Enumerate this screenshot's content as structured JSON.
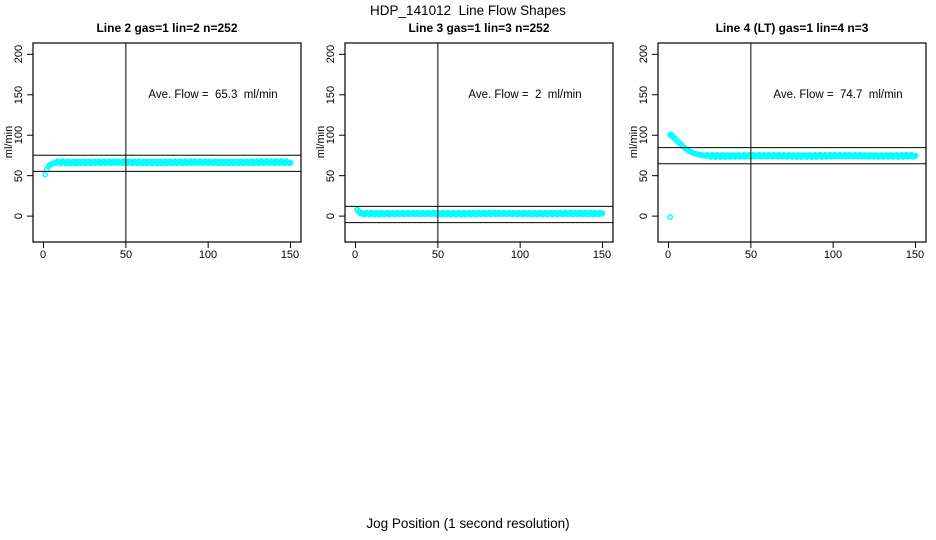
{
  "figure": {
    "title": "HDP_141012  Line Flow Shapes",
    "bottom_axis_label": "Jog Position (1 second resolution)"
  },
  "axes": {
    "y_label": "ml/min",
    "y_ticks": [
      "0",
      "50",
      "100",
      "150",
      "200"
    ],
    "x_ticks": [
      "0",
      "50",
      "100",
      "150"
    ]
  },
  "colors": {
    "points": "#00FFFF",
    "axis": "#000000",
    "background": "#FFFFFF"
  },
  "chart_data": {
    "type": "scatter",
    "xlabel": "Jog Position (1 second resolution)",
    "ylabel": "ml/min",
    "x_domain": [
      -6.4,
      156.4
    ],
    "y_domain": [
      -32,
      214
    ],
    "x_tick_values": [
      0,
      50,
      100,
      150
    ],
    "y_tick_values": [
      0,
      50,
      100,
      150,
      200
    ],
    "marker": "open-circle",
    "grid": false,
    "panels": [
      {
        "title": "Line 2 gas=1 lin=2 n=252",
        "annotation": "Ave. Flow =  65.3  ml/min",
        "ave_flow_ml_min": 65.3,
        "n": 252,
        "vline_x": 50,
        "ref_lines": [
          75.3,
          55.3
        ],
        "series": {
          "transient": [
            [
              1,
              51.5
            ],
            [
              2,
              58
            ],
            [
              3,
              61.5
            ],
            [
              4,
              63.5
            ],
            [
              5,
              64.5
            ],
            [
              6,
              65.2
            ],
            [
              7,
              65.8
            ],
            [
              8,
              66.2
            ]
          ],
          "steady": {
            "from": 8,
            "to": 150,
            "y": 66.5,
            "jitter": 1.6
          }
        },
        "outliers": []
      },
      {
        "title": "Line 3 gas=1 lin=3 n=252",
        "annotation": "Ave. Flow =  2  ml/min",
        "ave_flow_ml_min": 2,
        "n": 252,
        "vline_x": 50,
        "ref_lines": [
          12,
          -8
        ],
        "series": {
          "transient": [
            [
              1,
              8
            ],
            [
              2,
              5.5
            ],
            [
              3,
              4.2
            ]
          ],
          "steady": {
            "from": 3,
            "to": 150,
            "y": 3.2,
            "jitter": 1.4
          }
        },
        "outliers": []
      },
      {
        "title": "Line 4 (LT) gas=1 lin=4 n=3",
        "annotation": "Ave. Flow =  74.7  ml/min",
        "ave_flow_ml_min": 74.7,
        "n": 3,
        "vline_x": 50,
        "ref_lines": [
          84.7,
          64.7
        ],
        "series": {
          "transient": [
            [
              1,
              100.5
            ],
            [
              1.5,
              101
            ],
            [
              2,
              99.5
            ],
            [
              2.5,
              98.5
            ],
            [
              3,
              97.5
            ],
            [
              4,
              95.5
            ],
            [
              5,
              93.5
            ],
            [
              6,
              91.5
            ],
            [
              7,
              89.5
            ],
            [
              8,
              87.5
            ],
            [
              9,
              85.5
            ],
            [
              10,
              84
            ],
            [
              11,
              82.5
            ],
            [
              12,
              81
            ],
            [
              13,
              80
            ],
            [
              14,
              79
            ],
            [
              15,
              78
            ],
            [
              16,
              77.3
            ],
            [
              17,
              76.7
            ],
            [
              18,
              76.2
            ],
            [
              19,
              75.8
            ],
            [
              20,
              75.4
            ],
            [
              21,
              75.1
            ],
            [
              22,
              74.9
            ],
            [
              23,
              74.7
            ]
          ],
          "steady": {
            "from": 23,
            "to": 150,
            "y": 74.5,
            "jitter": 1.5
          }
        },
        "outliers": [
          [
            1,
            -1
          ]
        ]
      }
    ]
  }
}
